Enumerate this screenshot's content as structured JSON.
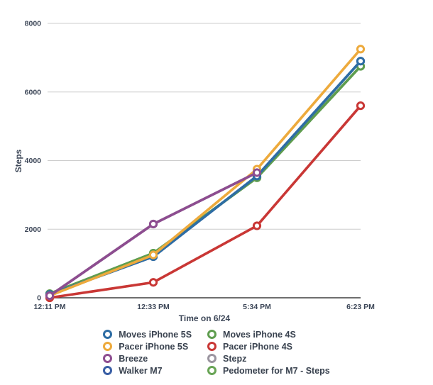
{
  "chart_data": {
    "type": "line",
    "title": "",
    "xlabel": "Time on 6/24",
    "ylabel": "Steps",
    "categories": [
      "12:11 PM",
      "12:33 PM",
      "5:34 PM",
      "6:23 PM"
    ],
    "ylim": [
      0,
      8000
    ],
    "yticks": [
      0,
      2000,
      4000,
      6000,
      8000
    ],
    "grid": "horizontal-only",
    "legend_position": "bottom-center-two-columns",
    "marker_style": "open-circle",
    "axis_color": "#3f3f3f",
    "gridline_color": "#cccccc",
    "tick_label_color": "#3d4758",
    "series": [
      {
        "name": "Moves iPhone 5S",
        "color": "#2e6da4",
        "values": [
          100,
          1200,
          3550,
          6900
        ]
      },
      {
        "name": "Pacer iPhone 5S",
        "color": "#edaa3c",
        "values": [
          60,
          1250,
          3750,
          7250
        ]
      },
      {
        "name": "Breeze",
        "color": "#8d4d90",
        "values": [
          60,
          2150,
          3650,
          null
        ]
      },
      {
        "name": "Walker M7",
        "color": "#3a5fa5",
        "values": [
          100,
          1200,
          3550,
          6900
        ]
      },
      {
        "name": "Moves iPhone 4S",
        "color": "#5f9d4f",
        "values": [
          120,
          1300,
          3500,
          6750
        ]
      },
      {
        "name": "Pacer iPhone 4S",
        "color": "#c93735",
        "values": [
          0,
          450,
          2100,
          5600
        ]
      },
      {
        "name": "Stepz",
        "color": "#9b95a0",
        "values": [
          60,
          2150,
          3650,
          null
        ]
      },
      {
        "name": "Pedometer for M7 - Steps",
        "color": "#68a455",
        "values": [
          120,
          1300,
          3500,
          6750
        ]
      }
    ],
    "draw_order": [
      6,
      3,
      7,
      4,
      5,
      0,
      1,
      2
    ],
    "legend_columns": [
      [
        0,
        1,
        2,
        3
      ],
      [
        4,
        5,
        6,
        7
      ]
    ]
  }
}
